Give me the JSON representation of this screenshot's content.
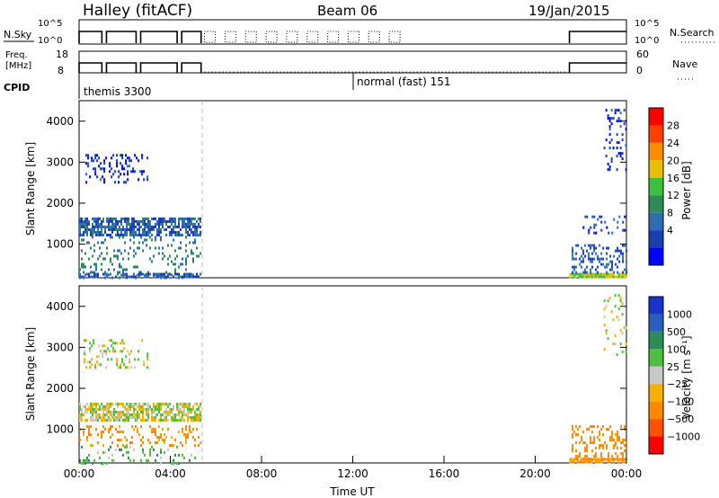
{
  "header": {
    "station": "Halley (fitACF)",
    "beam": "Beam 06",
    "date": "19/Jan/2015"
  },
  "nsky_panel": {
    "left_label": "N.Sky",
    "left_ticks": [
      "10^5",
      "10^0"
    ],
    "right_ticks": [
      "10^5",
      "10^0"
    ],
    "right_label": "N.Search"
  },
  "freq_panel": {
    "left_label_1": "Freq.",
    "left_label_2": "[MHz]",
    "left_ticks": [
      "18",
      "8"
    ],
    "right_ticks": [
      "60",
      "0"
    ],
    "right_label": "Nave"
  },
  "cpid_panel": {
    "label": "CPID",
    "modes": [
      {
        "name": "themis 3300",
        "start_hour": 0
      },
      {
        "name": "normal (fast) 151",
        "start_hour": 12
      }
    ]
  },
  "x_axis": {
    "label": "Time UT",
    "ticks": [
      "00:00",
      "04:00",
      "08:00",
      "12:00",
      "16:00",
      "20:00",
      "00:00"
    ]
  },
  "colors": {
    "power": [
      "#0000ff",
      "#1a40b0",
      "#2f6db0",
      "#2e8b57",
      "#3fbf3f",
      "#e5c000",
      "#ff8c00",
      "#ff4000",
      "#ff0000"
    ],
    "velocity": [
      "#1a33c8",
      "#2a5fbe",
      "#2e8b57",
      "#4fbf3f",
      "#c8c8c8",
      "#f2b000",
      "#ff8800",
      "#ff5000",
      "#ff0000"
    ]
  },
  "chart_data": [
    {
      "type": "heatmap",
      "title": "",
      "xlabel": "",
      "ylabel": "Slant Range [km]",
      "xlim_hours": [
        0,
        24
      ],
      "ylim_km": [
        180,
        4500
      ],
      "y_ticks": [
        1000,
        2000,
        3000,
        4000
      ],
      "colorbar": {
        "label": "Power [dB]",
        "range": [
          0,
          32
        ],
        "ticks": [
          "4",
          "8",
          "12",
          "16",
          "20",
          "24",
          "28"
        ]
      },
      "dashed_line_hour": 5.4,
      "regions": [
        {
          "t0": 0.0,
          "t1": 5.35,
          "r0": 1250,
          "r1": 1650,
          "value": 9,
          "density": 0.7
        },
        {
          "t0": 0.2,
          "t1": 3.0,
          "r0": 2500,
          "r1": 3200,
          "value": 5,
          "density": 0.2
        },
        {
          "t0": 0.0,
          "t1": 5.3,
          "r0": 200,
          "r1": 1200,
          "value": 12,
          "density": 0.15
        },
        {
          "t0": 0.0,
          "t1": 5.3,
          "r0": 180,
          "r1": 300,
          "value": 8,
          "density": 0.6
        },
        {
          "t0": 21.5,
          "t1": 24.0,
          "r0": 180,
          "r1": 300,
          "value": 20,
          "density": 0.9
        },
        {
          "t0": 21.6,
          "t1": 24.0,
          "r0": 300,
          "r1": 1000,
          "value": 8,
          "density": 0.3
        },
        {
          "t0": 22.0,
          "t1": 24.0,
          "r0": 1300,
          "r1": 1700,
          "value": 6,
          "density": 0.2
        },
        {
          "t0": 23.0,
          "t1": 24.0,
          "r0": 2800,
          "r1": 4300,
          "value": 5,
          "density": 0.15
        }
      ]
    },
    {
      "type": "heatmap",
      "title": "",
      "xlabel": "Time UT",
      "ylabel": "Slant Range [km]",
      "xlim_hours": [
        0,
        24
      ],
      "ylim_km": [
        180,
        4500
      ],
      "y_ticks": [
        1000,
        2000,
        3000,
        4000
      ],
      "colorbar": {
        "label": "Velocity [m s^-1]",
        "range": [
          -1500,
          1500
        ],
        "ticks": [
          "1000",
          "500",
          "100",
          "25",
          "−25",
          "−100",
          "−500",
          "−1000"
        ]
      },
      "dashed_line_hour": 5.4,
      "regions": [
        {
          "t0": 0.0,
          "t1": 5.35,
          "r0": 1200,
          "r1": 1650,
          "value": 0,
          "density": 0.7
        },
        {
          "t0": 0.2,
          "t1": 3.0,
          "r0": 2500,
          "r1": 3200,
          "value": 0,
          "density": 0.2
        },
        {
          "t0": 0.0,
          "t1": 5.3,
          "r0": 600,
          "r1": 1100,
          "value": -150,
          "density": 0.2
        },
        {
          "t0": 0.0,
          "t1": 5.3,
          "r0": 180,
          "r1": 600,
          "value": 80,
          "density": 0.15
        },
        {
          "t0": 21.5,
          "t1": 24.0,
          "r0": 180,
          "r1": 300,
          "value": -150,
          "density": 0.9
        },
        {
          "t0": 21.6,
          "t1": 24.0,
          "r0": 300,
          "r1": 1100,
          "value": -300,
          "density": 0.3
        },
        {
          "t0": 23.0,
          "t1": 24.0,
          "r0": 2800,
          "r1": 4300,
          "value": 0,
          "density": 0.1
        }
      ]
    }
  ]
}
